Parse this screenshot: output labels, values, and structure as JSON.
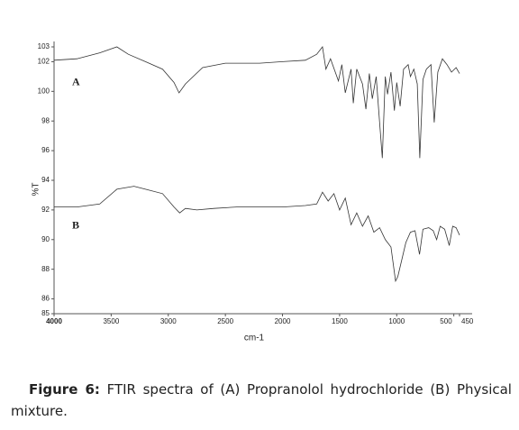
{
  "chart_data": {
    "type": "line",
    "xlabel": "cm-1",
    "ylabel": "%T",
    "xlim": [
      4000,
      450
    ],
    "ylim": [
      85,
      103
    ],
    "xticks": [
      4000,
      3500,
      3000,
      2500,
      2000,
      1500,
      1000,
      500,
      450
    ],
    "yticks": [
      103,
      102,
      100,
      98,
      96,
      94,
      92,
      90,
      88,
      86,
      85
    ],
    "color": "#333333",
    "series": [
      {
        "name": "A",
        "x": [
          4000,
          3800,
          3600,
          3450,
          3350,
          3200,
          3050,
          2950,
          2906,
          2850,
          2700,
          2500,
          2200,
          2000,
          1800,
          1700,
          1650,
          1620,
          1580,
          1510,
          1480,
          1450,
          1400,
          1380,
          1350,
          1300,
          1270,
          1240,
          1214,
          1180,
          1150,
          1126,
          1100,
          1080,
          1050,
          1020,
          1000,
          970,
          940,
          900,
          880,
          850,
          820,
          798,
          770,
          740,
          700,
          672,
          640,
          600,
          560,
          520,
          480,
          450
        ],
        "values": [
          102.1,
          102.2,
          102.6,
          103.0,
          102.5,
          102.0,
          101.5,
          100.6,
          99.9,
          100.5,
          101.6,
          101.9,
          101.9,
          102.0,
          102.1,
          102.5,
          103.0,
          101.5,
          102.2,
          100.7,
          101.8,
          99.9,
          101.5,
          99.2,
          101.5,
          100.5,
          98.8,
          101.2,
          99.5,
          101.0,
          97.9,
          95.5,
          101.0,
          99.8,
          101.3,
          98.7,
          100.6,
          99.0,
          101.5,
          101.8,
          101.0,
          101.5,
          100.5,
          95.5,
          100.8,
          101.5,
          101.8,
          97.9,
          101.3,
          102.2,
          101.8,
          101.3,
          101.6,
          101.2
        ]
      },
      {
        "name": "B",
        "x": [
          4000,
          3800,
          3600,
          3450,
          3300,
          3200,
          3050,
          2950,
          2900,
          2850,
          2750,
          2600,
          2400,
          2200,
          2000,
          1800,
          1700,
          1650,
          1600,
          1550,
          1500,
          1450,
          1400,
          1350,
          1300,
          1250,
          1200,
          1150,
          1100,
          1050,
          1010,
          990,
          960,
          920,
          880,
          840,
          800,
          770,
          720,
          680,
          650,
          620,
          580,
          540,
          510,
          480,
          450
        ],
        "values": [
          92.2,
          92.2,
          92.4,
          93.4,
          93.6,
          93.4,
          93.1,
          92.2,
          91.8,
          92.1,
          92.0,
          92.1,
          92.2,
          92.2,
          92.2,
          92.3,
          92.4,
          93.2,
          92.6,
          93.1,
          92.0,
          92.8,
          91.0,
          91.8,
          90.9,
          91.6,
          90.5,
          90.8,
          90.0,
          89.5,
          87.2,
          87.5,
          88.5,
          89.8,
          90.5,
          90.6,
          89.0,
          90.7,
          90.8,
          90.6,
          90.0,
          90.9,
          90.7,
          89.6,
          90.9,
          90.8,
          90.3
        ]
      }
    ]
  },
  "caption": {
    "label": "Figure 6:",
    "text": "FTIR spectra of (A) Propranolol hydrochloride (B) Physical mixture."
  }
}
